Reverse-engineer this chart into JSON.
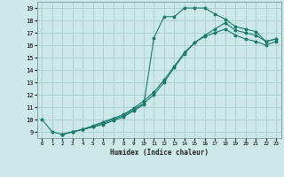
{
  "xlabel": "Humidex (Indice chaleur)",
  "xlim": [
    -0.5,
    23.5
  ],
  "ylim": [
    8.5,
    19.5
  ],
  "yticks": [
    9,
    10,
    11,
    12,
    13,
    14,
    15,
    16,
    17,
    18,
    19
  ],
  "xticks": [
    0,
    1,
    2,
    3,
    4,
    5,
    6,
    7,
    8,
    9,
    10,
    11,
    12,
    13,
    14,
    15,
    16,
    17,
    18,
    19,
    20,
    21,
    22,
    23
  ],
  "bg_color": "#cce8e8",
  "grid_color": "#aacccc",
  "line_color": "#1a7a6e",
  "line1_x": [
    0,
    1,
    2,
    3,
    4,
    5,
    6,
    7,
    8,
    9,
    10,
    11,
    12,
    13,
    14,
    15,
    16,
    17,
    18,
    19,
    20,
    21,
    22,
    23
  ],
  "line1_y": [
    10.0,
    9.0,
    8.8,
    9.0,
    9.2,
    9.4,
    9.6,
    9.9,
    10.2,
    10.7,
    11.2,
    16.6,
    18.3,
    18.3,
    19.0,
    19.0,
    19.0,
    18.5,
    18.1,
    17.5,
    17.3,
    17.1,
    16.3,
    16.5
  ],
  "line2_x": [
    2,
    3,
    4,
    5,
    6,
    7,
    8,
    9,
    10,
    11,
    12,
    13,
    14,
    15,
    16,
    17,
    18,
    19,
    20,
    21,
    22,
    23
  ],
  "line2_y": [
    8.8,
    9.0,
    9.2,
    9.4,
    9.7,
    10.0,
    10.3,
    10.8,
    11.3,
    12.0,
    13.0,
    14.2,
    15.3,
    16.2,
    16.8,
    17.3,
    17.8,
    17.2,
    17.0,
    16.8,
    16.3,
    16.5
  ],
  "line3_x": [
    2,
    3,
    4,
    5,
    6,
    7,
    8,
    9,
    10,
    11,
    12,
    13,
    14,
    15,
    16,
    17,
    18,
    19,
    20,
    21,
    22,
    23
  ],
  "line3_y": [
    8.8,
    9.0,
    9.2,
    9.5,
    9.8,
    10.1,
    10.4,
    10.9,
    11.5,
    12.2,
    13.2,
    14.3,
    15.4,
    16.2,
    16.7,
    17.0,
    17.3,
    16.8,
    16.5,
    16.3,
    16.0,
    16.3
  ]
}
